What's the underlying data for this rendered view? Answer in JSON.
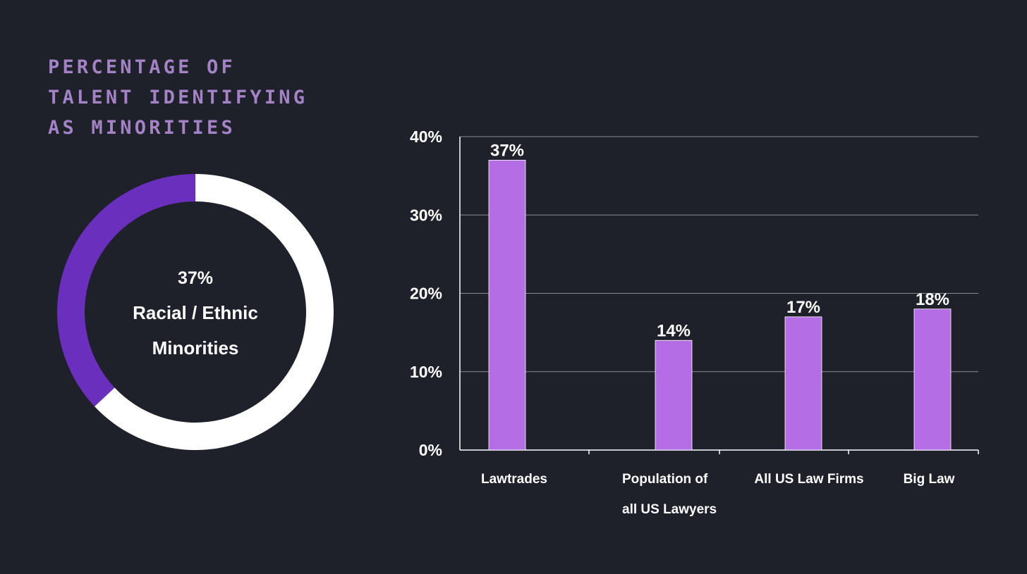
{
  "title_lines": [
    "PERCENTAGE OF",
    "TALENT IDENTIFYING",
    "AS MINORITIES"
  ],
  "colors": {
    "background": "#1e202a",
    "title": "#a383c6",
    "donut_fill": "#6a2fbd",
    "donut_rest": "#ffffff",
    "bar": "#b56de6",
    "grid": "#8a8b92"
  },
  "chart_data": [
    {
      "type": "pie",
      "values": [
        37,
        63
      ],
      "center_labels": [
        "37%",
        "Racial / Ethnic",
        "Minorities"
      ]
    },
    {
      "type": "bar",
      "categories": [
        [
          "Lawtrades"
        ],
        [
          "Population of",
          "all US Lawyers"
        ],
        [
          "All US Law Firms"
        ],
        [
          "Big Law"
        ]
      ],
      "values": [
        37,
        14,
        17,
        18
      ],
      "data_labels": [
        "37%",
        "14%",
        "17%",
        "18%"
      ],
      "ylim": [
        0,
        40
      ],
      "yticks": [
        0,
        10,
        20,
        30,
        40
      ],
      "ytick_labels": [
        "0%",
        "10%",
        "20%",
        "30%",
        "40%"
      ],
      "grid": true
    }
  ]
}
